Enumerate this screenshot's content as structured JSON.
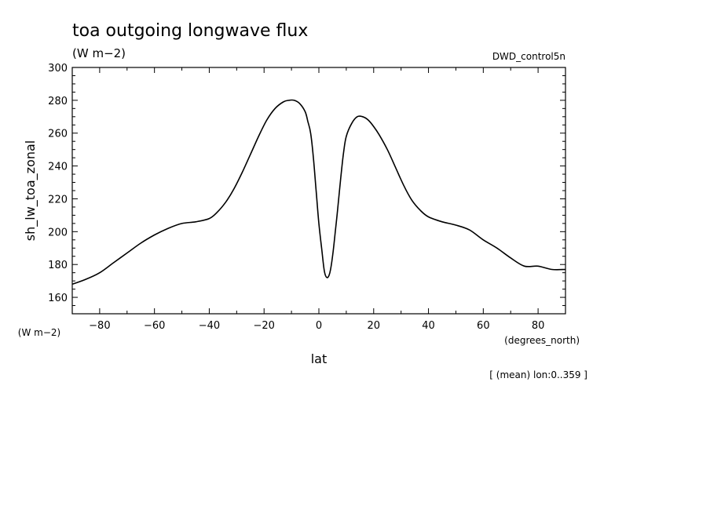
{
  "chart_data": {
    "type": "line",
    "title": "toa outgoing longwave flux",
    "title_units": "(W m−2)",
    "dataset": "DWD_control5n",
    "ylabel": "sh_lw_toa_zonal",
    "y_units": "(W m−2)",
    "xlabel": "lat",
    "x_units": "(degrees_north)",
    "footnote": "[ (mean) lon:0..359 ]",
    "xlim": [
      -90,
      90
    ],
    "ylim": [
      150,
      300
    ],
    "x_ticks": [
      -80,
      -60,
      -40,
      -20,
      0,
      20,
      40,
      60,
      80
    ],
    "x_tick_labels": [
      "−80",
      "−60",
      "−40",
      "−20",
      "0",
      "20",
      "40",
      "60",
      "80"
    ],
    "y_ticks": [
      160,
      180,
      200,
      220,
      240,
      260,
      280,
      300
    ],
    "grid": false,
    "series": [
      {
        "color": "#000000",
        "x": [
          -90,
          -85,
          -80,
          -75,
          -70,
          -65,
          -60,
          -55,
          -50,
          -45,
          -40,
          -37,
          -34,
          -31,
          -28,
          -25,
          -22,
          -19,
          -16,
          -13,
          -11,
          -9,
          -7,
          -5,
          -4,
          -3,
          -2,
          -1,
          0,
          1,
          2,
          3,
          4,
          5,
          6,
          7,
          8,
          9,
          10,
          12,
          14,
          16,
          18,
          20,
          22,
          25,
          28,
          31,
          34,
          37,
          40,
          45,
          50,
          55,
          60,
          65,
          70,
          75,
          80,
          85,
          90
        ],
        "y": [
          168,
          171,
          175,
          181,
          187,
          193,
          198,
          202,
          205,
          206,
          208,
          212,
          218,
          226,
          236,
          247,
          258,
          268,
          275,
          279,
          280,
          280,
          278,
          273,
          267,
          260,
          245,
          225,
          205,
          190,
          176,
          172,
          175,
          185,
          200,
          216,
          233,
          248,
          258,
          266,
          270,
          270,
          268,
          264,
          259,
          250,
          239,
          228,
          219,
          213,
          209,
          206,
          204,
          201,
          195,
          190,
          184,
          179,
          179,
          177,
          177
        ]
      }
    ]
  }
}
